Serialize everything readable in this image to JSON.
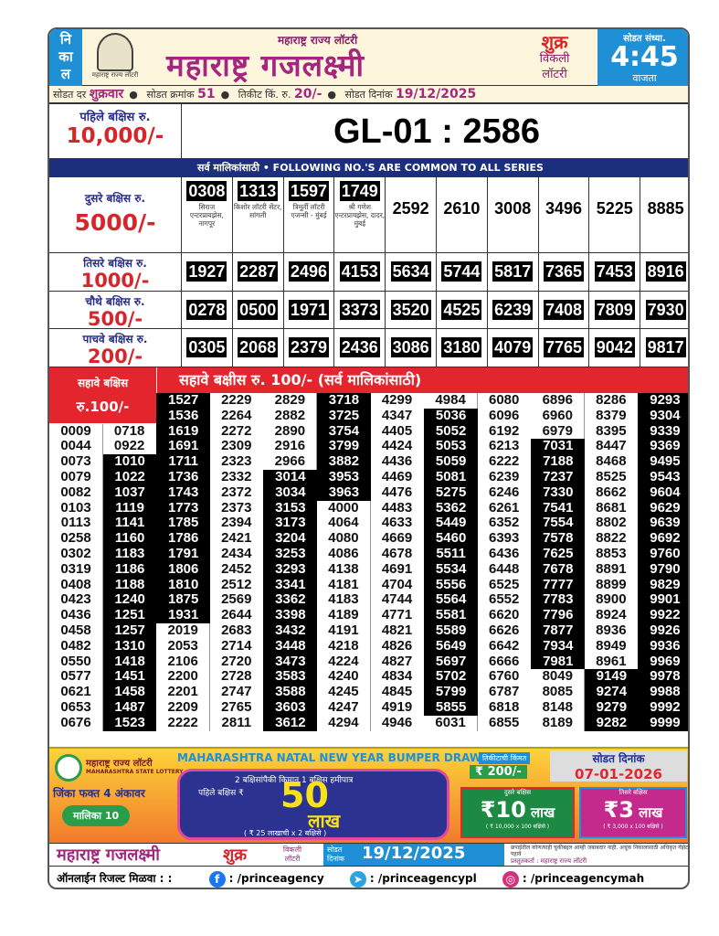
{
  "header": {
    "nikal": [
      "नि",
      "का",
      "ल"
    ],
    "emblem_text": "महाराष्ट्र राज्य लॉटरी",
    "subtitle": "महाराष्ट्र राज्य लॉटरी",
    "title": "महाराष्ट्र गजलक्ष्मी",
    "day": "शुक्र",
    "vikli": "विकली",
    "lottery": "लॉटरी",
    "time_label": "सोडत संध्या.",
    "time": "4:45",
    "time_suffix": "वाजता"
  },
  "info": {
    "draw_day_label": "सोडत दर",
    "draw_day": "शुक्रवार",
    "draw_no_label": "सोडत क्रमांक",
    "draw_no": "51",
    "price_label": "तिकीट किं. रु.",
    "price": "20/-",
    "date_label": "सोडत दिनांक",
    "date": "19/12/2025"
  },
  "first_prize": {
    "label": "पहिले बक्षिस रु.",
    "amount": "10,000/-",
    "number": "GL-01 : 2586"
  },
  "common_bar": "सर्व मालिकांसाठी  •  FOLLOWING NO.'S ARE COMMON TO ALL SERIES",
  "prizes": [
    {
      "label": "दुसरे बक्षिस रु.",
      "amount": "5000/-",
      "numbers": [
        "0308",
        "1313",
        "1597",
        "1749",
        "2592",
        "2610",
        "3008",
        "3496",
        "5225",
        "8885"
      ],
      "agents": [
        "सिराज एन्टरप्रायझेस, नागपूर",
        "किशोर लॉटरी सेंटर, सांगली",
        "त्रिमूर्ती लॉटरी एजन्सी - मुंबई",
        "श्री गणेश एन्टरप्रायझेस, दादर, मुंबई"
      ]
    },
    {
      "label": "तिसरे बक्षिस रु.",
      "amount": "1000/-",
      "numbers": [
        "1927",
        "2287",
        "2496",
        "4153",
        "5634",
        "5744",
        "5817",
        "7365",
        "7453",
        "8916"
      ]
    },
    {
      "label": "चौथे बक्षिस रु.",
      "amount": "500/-",
      "numbers": [
        "0278",
        "0500",
        "1971",
        "3373",
        "3520",
        "4525",
        "6239",
        "7408",
        "7809",
        "7930"
      ]
    },
    {
      "label": "पाचवे बक्षिस रु.",
      "amount": "200/-",
      "numbers": [
        "0305",
        "2068",
        "2379",
        "2436",
        "3086",
        "3180",
        "4079",
        "7765",
        "9042",
        "9817"
      ]
    }
  ],
  "sixth_prize": {
    "left_label": "सहावे बक्षिस",
    "left_amount": "रु.100/-",
    "header": "सहावे बक्षीस रु. 100/-   (सर्व मालिकांसाठी)",
    "columns": [
      {
        "numbers": [
          "0009",
          "0044",
          "0073",
          "0079",
          "0082",
          "0103",
          "0113",
          "0258",
          "0302",
          "0319",
          "0408",
          "0423",
          "0436",
          "0458",
          "0482",
          "0550",
          "0577",
          "0621",
          "0653",
          "0676"
        ],
        "dark_from": null,
        "dark_to": null
      },
      {
        "numbers": [
          "0718",
          "0922",
          "1010",
          "1022",
          "1037",
          "1119",
          "1141",
          "1160",
          "1183",
          "1186",
          "1188",
          "1240",
          "1251",
          "1257",
          "1310",
          "1418",
          "1451",
          "1458",
          "1487",
          "1523"
        ],
        "dark_from": 2,
        "dark_to": 19
      },
      {
        "numbers": [
          "1527",
          "1536",
          "1619",
          "1691",
          "1711",
          "1736",
          "1743",
          "1773",
          "1785",
          "1786",
          "1791",
          "1806",
          "1810",
          "1875",
          "1931",
          "2019",
          "2053",
          "2106",
          "2200",
          "2201",
          "2209",
          "2222"
        ],
        "dark_from": 0,
        "dark_to": 14
      },
      {
        "numbers": [
          "2229",
          "2264",
          "2272",
          "2309",
          "2323",
          "2332",
          "2372",
          "2373",
          "2394",
          "2421",
          "2434",
          "2452",
          "2512",
          "2569",
          "2644",
          "2683",
          "2714",
          "2720",
          "2728",
          "2747",
          "2765",
          "2811"
        ],
        "dark_from": null,
        "dark_to": null
      },
      {
        "numbers": [
          "2829",
          "2882",
          "2890",
          "2916",
          "2966",
          "3014",
          "3034",
          "3153",
          "3173",
          "3204",
          "3253",
          "3293",
          "3341",
          "3362",
          "3398",
          "3432",
          "3448",
          "3473",
          "3583",
          "3588",
          "3603",
          "3612"
        ],
        "dark_from": 5,
        "dark_to": 21
      },
      {
        "numbers": [
          "3718",
          "3725",
          "3754",
          "3799",
          "3882",
          "3953",
          "3963",
          "4000",
          "4064",
          "4080",
          "4086",
          "4138",
          "4181",
          "4183",
          "4189",
          "4191",
          "4218",
          "4224",
          "4240",
          "4245",
          "4247",
          "4294"
        ],
        "dark_from": 0,
        "dark_to": 6
      },
      {
        "numbers": [
          "4299",
          "4347",
          "4405",
          "4424",
          "4436",
          "4469",
          "4476",
          "4483",
          "4633",
          "4669",
          "4678",
          "4691",
          "4704",
          "4744",
          "4771",
          "4821",
          "4826",
          "4827",
          "4834",
          "4845",
          "4919",
          "4946"
        ],
        "dark_from": null,
        "dark_to": null
      },
      {
        "numbers": [
          "4984",
          "5036",
          "5052",
          "5053",
          "5059",
          "5081",
          "5275",
          "5362",
          "5449",
          "5460",
          "5511",
          "5534",
          "5556",
          "5564",
          "5581",
          "5589",
          "5649",
          "5697",
          "5702",
          "5799",
          "5855",
          "6031"
        ],
        "dark_from": 1,
        "dark_to": 20
      },
      {
        "numbers": [
          "6080",
          "6096",
          "6192",
          "6213",
          "6222",
          "6239",
          "6246",
          "6261",
          "6352",
          "6393",
          "6436",
          "6448",
          "6525",
          "6552",
          "6620",
          "6626",
          "6642",
          "6666",
          "6760",
          "6787",
          "6818",
          "6855"
        ],
        "dark_from": null,
        "dark_to": null
      },
      {
        "numbers": [
          "6896",
          "6960",
          "6979",
          "7031",
          "7188",
          "7237",
          "7330",
          "7541",
          "7554",
          "7578",
          "7625",
          "7678",
          "7777",
          "7783",
          "7796",
          "7877",
          "7934",
          "7981",
          "8049",
          "8085",
          "8148",
          "8189"
        ],
        "dark_from": 3,
        "dark_to": 17
      },
      {
        "numbers": [
          "8286",
          "8379",
          "8395",
          "8447",
          "8468",
          "8525",
          "8662",
          "8681",
          "8802",
          "8822",
          "8853",
          "8891",
          "8899",
          "8900",
          "8924",
          "8936",
          "8949",
          "8961",
          "9149",
          "9274",
          "9279",
          "9282"
        ],
        "dark_from": 18,
        "dark_to": 21
      },
      {
        "numbers": [
          "9293",
          "9304",
          "9339",
          "9369",
          "9495",
          "9543",
          "9604",
          "9629",
          "9639",
          "9692",
          "9760",
          "9790",
          "9829",
          "9901",
          "9922",
          "9926",
          "9936",
          "9969",
          "9978",
          "9988",
          "9992",
          "9999"
        ],
        "dark_from": 0,
        "dark_to": 21
      }
    ]
  },
  "ad": {
    "logo_text": "महाराष्ट्र राज्य लॉटरी",
    "logo_sub": "MAHARASHTRA STATE LOTTERY",
    "win_text": "जिंका फक्त 4 अंकावर",
    "series": "मालिका 10",
    "headline": "MAHARASHTRA NATAL NEW YEAR BUMPER DRAW",
    "guarantee": "2 बक्षिसांपैकी किमान 1 बक्षिस हमीपात्र",
    "first_label": "पहिले बक्षिस ₹",
    "first_amount": "50",
    "first_unit": "लाख",
    "first_note": "( ₹ 25 लाखाची x 2 बक्षिसे )",
    "ticket_price_label": "तिकीटाची किंमत",
    "ticket_price": "₹ 200/-",
    "draw_date_label": "सोडत दिनांक",
    "draw_date": "07-01-2026",
    "second_label": "दुसरे बक्षिस",
    "second_amount": "₹10",
    "second_unit": "लाख",
    "second_note": "( ₹ 10,000 x 100 बक्षिसे )",
    "third_label": "तिसरे बक्षिस",
    "third_amount": "₹3",
    "third_unit": "लाख",
    "third_note": "( ₹ 3,000 x 100 बक्षिसे )"
  },
  "footer": {
    "title": "महाराष्ट्र गजलक्ष्मी",
    "day": "शुक्र",
    "vikli": "विकली लॉटरी",
    "date_label": "सोडत दिनांक",
    "date": "19/12/2025",
    "disclaimer": "छपाईतील कोणत्याही चुकीबद्दल आम्ही जबाबदार नाही. अचूक निकालासाठी अधिकृत गॅझेट पहावे",
    "presenter": "प्रस्तुतकर्ता : महाराष्ट्र राज्य लॉटरी",
    "online_label": "ऑनलाईन रिजल्ट मिळवा : :",
    "facebook": ": /princeagency",
    "telegram": ": /princeagencypl",
    "instagram": ": /princeagencymah"
  },
  "colors": {
    "blue": "#1f8fd6",
    "navy": "#1c2f7c",
    "red": "#e3262d",
    "magenta": "#a3267f"
  }
}
